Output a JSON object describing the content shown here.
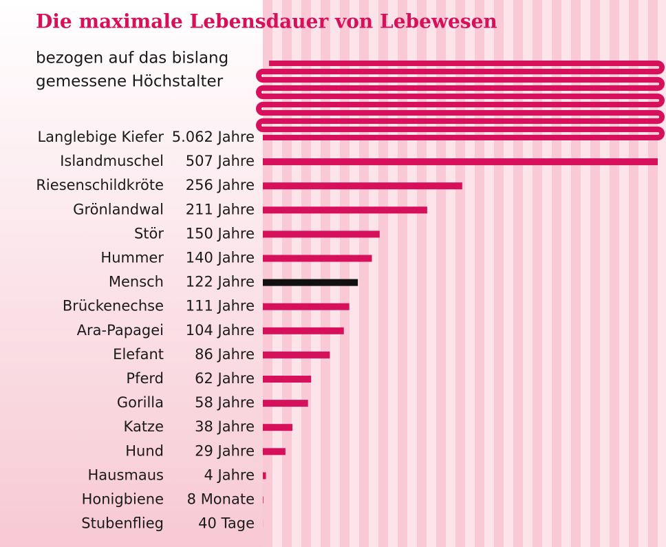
{
  "chart_data": {
    "type": "bar",
    "title": "Die maximale Lebensdauer von Lebewesen",
    "subtitle": [
      "bezogen auf das bislang",
      "gemessene Höchstalter"
    ],
    "categories": [
      "Langlebige Kiefer",
      "Islandmuschel",
      "Riesenschildkröte",
      "Grönlandwal",
      "Stör",
      "Hummer",
      "Mensch",
      "Brückenechse",
      "Ara-Papagei",
      "Elefant",
      "Pferd",
      "Gorilla",
      "Katze",
      "Hund",
      "Hausmaus",
      "Honigbiene",
      "Stubenflieg"
    ],
    "values": [
      5062,
      507,
      256,
      211,
      150,
      140,
      122,
      111,
      104,
      86,
      62,
      58,
      38,
      29,
      4,
      0.667,
      0.11
    ],
    "value_labels": [
      "5.062 Jahre",
      "507 Jahre",
      "256 Jahre",
      "211 Jahre",
      "150 Jahre",
      "140 Jahre",
      "122 Jahre",
      "111 Jahre",
      "104 Jahre",
      "86 Jahre",
      "62 Jahre",
      "58 Jahre",
      "38 Jahre",
      "29 Jahre",
      "4 Jahre",
      "8 Monate",
      "40 Tage"
    ],
    "colors": [
      "#d6105a",
      "#d6105a",
      "#d6105a",
      "#d6105a",
      "#d6105a",
      "#d6105a",
      "#111111",
      "#d6105a",
      "#d6105a",
      "#d6105a",
      "#d6105a",
      "#d6105a",
      "#d6105a",
      "#d6105a",
      "#d6105a",
      "#d6105a",
      "#d6105a"
    ]
  }
}
